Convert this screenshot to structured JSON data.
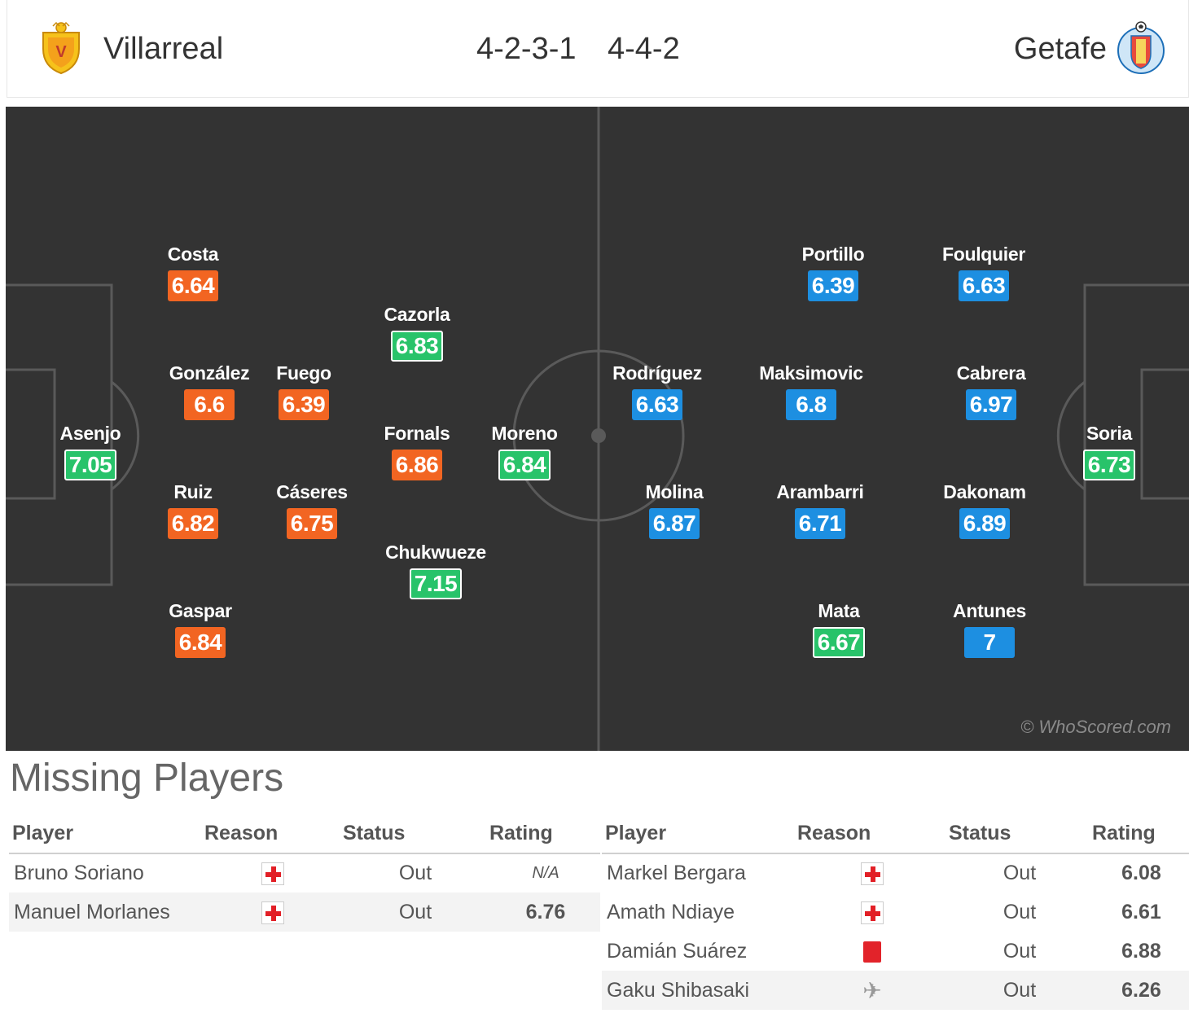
{
  "header": {
    "home_team": "Villarreal",
    "away_team": "Getafe",
    "home_formation": "4-2-3-1",
    "away_formation": "4-4-2"
  },
  "pitch": {
    "watermark": "© WhoScored.com"
  },
  "home_players": [
    {
      "name": "Costa",
      "rating": "6.64",
      "color": "orange"
    },
    {
      "name": "González",
      "rating": "6.6",
      "color": "orange"
    },
    {
      "name": "Ruiz",
      "rating": "6.82",
      "color": "orange"
    },
    {
      "name": "Gaspar",
      "rating": "6.84",
      "color": "orange"
    },
    {
      "name": "Fuego",
      "rating": "6.39",
      "color": "orange"
    },
    {
      "name": "Cáseres",
      "rating": "6.75",
      "color": "orange"
    },
    {
      "name": "Cazorla",
      "rating": "6.83",
      "color": "green"
    },
    {
      "name": "Fornals",
      "rating": "6.86",
      "color": "orange"
    },
    {
      "name": "Chukwueze",
      "rating": "7.15",
      "color": "green"
    },
    {
      "name": "Moreno",
      "rating": "6.84",
      "color": "green"
    },
    {
      "name": "Asenjo",
      "rating": "7.05",
      "color": "green"
    }
  ],
  "away_players": [
    {
      "name": "Portillo",
      "rating": "6.39",
      "color": "blue"
    },
    {
      "name": "Foulquier",
      "rating": "6.63",
      "color": "blue"
    },
    {
      "name": "Rodríguez",
      "rating": "6.63",
      "color": "blue"
    },
    {
      "name": "Maksimovic",
      "rating": "6.8",
      "color": "blue"
    },
    {
      "name": "Cabrera",
      "rating": "6.97",
      "color": "blue"
    },
    {
      "name": "Molina",
      "rating": "6.87",
      "color": "blue"
    },
    {
      "name": "Arambarri",
      "rating": "6.71",
      "color": "blue"
    },
    {
      "name": "Dakonam",
      "rating": "6.89",
      "color": "blue"
    },
    {
      "name": "Mata",
      "rating": "6.67",
      "color": "green"
    },
    {
      "name": "Antunes",
      "rating": "7",
      "color": "blue"
    },
    {
      "name": "Soria",
      "rating": "6.73",
      "color": "green"
    }
  ],
  "missing": {
    "title": "Missing Players",
    "headers": {
      "player": "Player",
      "reason": "Reason",
      "status": "Status",
      "rating": "Rating"
    },
    "home": [
      {
        "player": "Bruno Soriano",
        "reason_icon": "injury-icon",
        "status": "Out",
        "rating": "N/A"
      },
      {
        "player": "Manuel Morlanes",
        "reason_icon": "injury-icon",
        "status": "Out",
        "rating": "6.76"
      }
    ],
    "away": [
      {
        "player": "Markel Bergara",
        "reason_icon": "injury-icon",
        "status": "Out",
        "rating": "6.08"
      },
      {
        "player": "Amath Ndiaye",
        "reason_icon": "injury-icon",
        "status": "Out",
        "rating": "6.61"
      },
      {
        "player": "Damián Suárez",
        "reason_icon": "red-card-icon",
        "status": "Out",
        "rating": "6.88"
      },
      {
        "player": "Gaku Shibasaki",
        "reason_icon": "plane-icon",
        "status": "Out",
        "rating": "6.26"
      }
    ]
  }
}
